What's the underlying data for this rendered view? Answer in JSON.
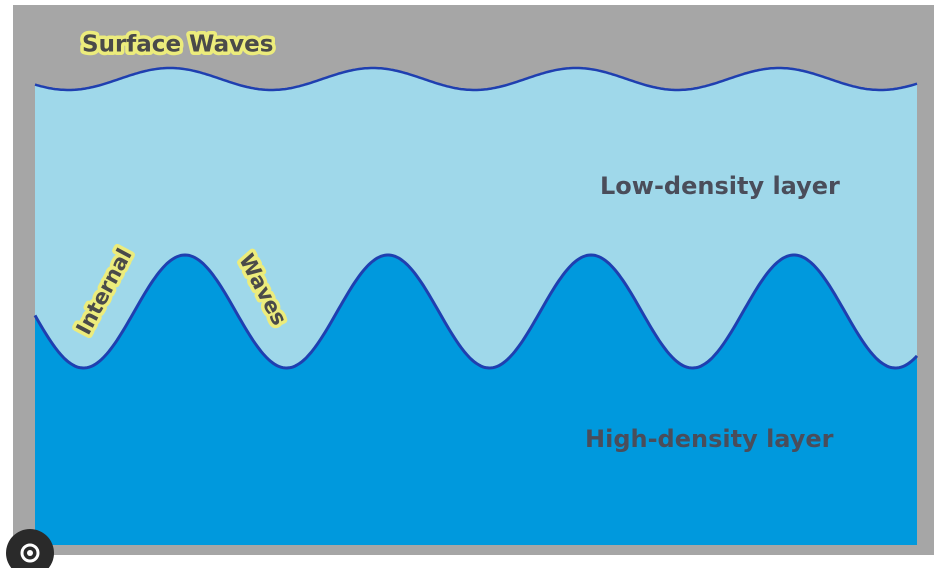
{
  "labels": {
    "surface": "Surface Waves",
    "internal_1": "Internal",
    "internal_2": "Waves",
    "low_layer": "Low-density layer",
    "high_layer": "High-density layer"
  }
}
